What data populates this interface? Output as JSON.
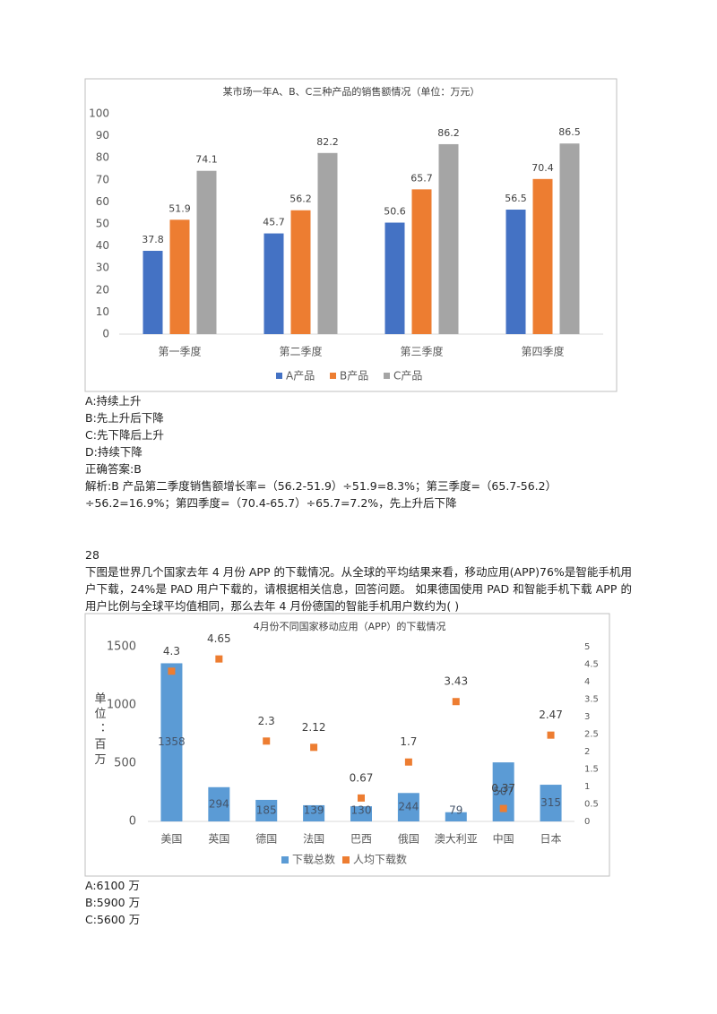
{
  "chart_data": [
    {
      "type": "bar",
      "title": "某市场一年A、B、C三种产品的销售额情况（单位：万元）",
      "categories": [
        "第一季度",
        "第二季度",
        "第三季度",
        "第四季度"
      ],
      "series": [
        {
          "name": "A产品",
          "color": "#4472c4",
          "values": [
            37.8,
            45.7,
            50.6,
            56.5
          ]
        },
        {
          "name": "B产品",
          "color": "#ed7d31",
          "values": [
            51.9,
            56.2,
            65.7,
            70.4
          ]
        },
        {
          "name": "C产品",
          "color": "#a5a5a5",
          "values": [
            74.1,
            82.2,
            86.2,
            86.5
          ]
        }
      ],
      "ylim": [
        0,
        100
      ],
      "yticks": [
        0,
        10,
        20,
        30,
        40,
        50,
        60,
        70,
        80,
        90,
        100
      ]
    },
    {
      "type": "combo",
      "title": "4月份不同国家移动应用（APP）的下载情况",
      "y_label": "单位：百万",
      "categories": [
        "美国",
        "英国",
        "德国",
        "法国",
        "巴西",
        "俄国",
        "澳大利亚",
        "中国",
        "日本"
      ],
      "series": [
        {
          "name": "下载总数",
          "type": "bar",
          "color": "#5b9bd5",
          "values": [
            1358,
            294,
            185,
            139,
            130,
            244,
            79,
            507,
            315
          ]
        },
        {
          "name": "人均下载数",
          "type": "scatter",
          "axis": "y2",
          "color": "#ed7d31",
          "values": [
            4.3,
            4.65,
            2.3,
            2.12,
            0.67,
            1.7,
            3.43,
            0.37,
            2.47
          ]
        }
      ],
      "ylim": [
        0,
        1500
      ],
      "yticks": [
        0,
        500,
        1000,
        1500
      ],
      "y2lim": [
        0,
        5
      ],
      "y2ticks": [
        0,
        0.5,
        1,
        1.5,
        2,
        2.5,
        3,
        3.5,
        4,
        4.5,
        5
      ]
    }
  ],
  "document": {
    "q27_options": [
      "A:持续上升",
      "B:先上升后下降",
      "C:先下降后上升",
      "D:持续下降"
    ],
    "q27_answer": "正确答案:B",
    "q27_explanation": "解析:B 产品第二季度销售额增长率=（56.2-51.9）÷51.9=8.3%；第三季度=（65.7-56.2）÷56.2=16.9%；第四季度=（70.4-65.7）÷65.7=7.2%，先上升后下降",
    "q28_number": "28",
    "q28_text": "下图是世界几个国家去年 4 月份 APP 的下载情况。从全球的平均结果来看，移动应用(APP)76%是智能手机用户下载，24%是 PAD 用户下载的，请根据相关信息，回答问题。 如果德国使用 PAD 和智能手机下载 APP 的用户比例与全球平均值相同，那么去年 4 月份德国的智能手机用户数约为( )",
    "q28_options": [
      "A:6100 万",
      "B:5900 万",
      "C:5600 万"
    ]
  }
}
